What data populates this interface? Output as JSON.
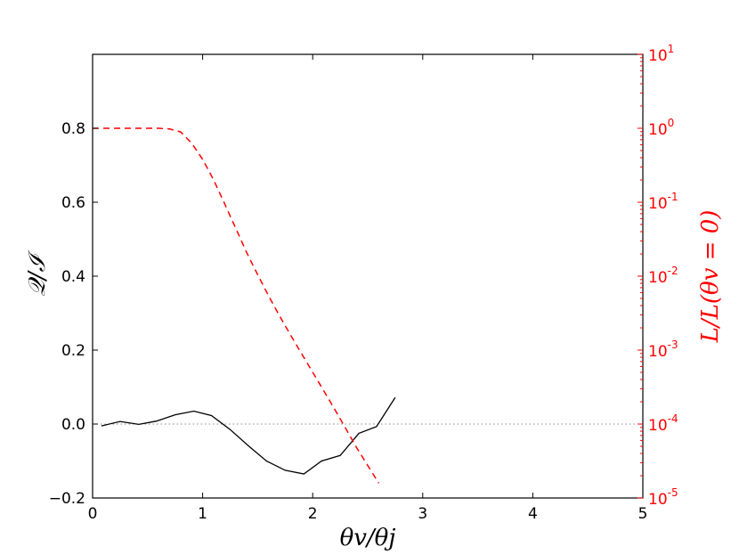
{
  "chart_data": {
    "type": "line",
    "title": "",
    "xlabel": "θv/θj",
    "ylabel_left": "𝒬/ℐ",
    "ylabel_right": "L/L(θv = 0)",
    "xlim": [
      0,
      5
    ],
    "ylim_left": [
      -0.2,
      1.0
    ],
    "right_axis_scale": "log",
    "ylim_right_exp": [
      -5,
      1
    ],
    "x_ticks": [
      "0",
      "1",
      "2",
      "3",
      "4",
      "5"
    ],
    "y_left_ticks": [
      "−0.2",
      "0.0",
      "0.2",
      "0.4",
      "0.6",
      "0.8"
    ],
    "y_left_tick_values": [
      -0.2,
      0.0,
      0.2,
      0.4,
      0.6,
      0.8
    ],
    "y_right_ticks": [
      {
        "exp": -5,
        "base": "10",
        "sup": "-5"
      },
      {
        "exp": -4,
        "base": "10",
        "sup": "-4"
      },
      {
        "exp": -3,
        "base": "10",
        "sup": "-3"
      },
      {
        "exp": -2,
        "base": "10",
        "sup": "-2"
      },
      {
        "exp": -1,
        "base": "10",
        "sup": "-1"
      },
      {
        "exp": 0,
        "base": "10",
        "sup": "0"
      },
      {
        "exp": 1,
        "base": "10",
        "sup": "1"
      }
    ],
    "series": [
      {
        "axis": "left",
        "style": "solid",
        "color": "#000000",
        "x": [
          0.08,
          0.25,
          0.42,
          0.58,
          0.75,
          0.92,
          1.08,
          1.25,
          1.42,
          1.58,
          1.75,
          1.92,
          2.08,
          2.25,
          2.42,
          2.58,
          2.75
        ],
        "y": [
          -0.005,
          0.007,
          -0.001,
          0.008,
          0.025,
          0.035,
          0.023,
          -0.015,
          -0.06,
          -0.1,
          -0.125,
          -0.135,
          -0.1,
          -0.085,
          -0.025,
          -0.007,
          0.072
        ]
      },
      {
        "axis": "right",
        "style": "dashed",
        "color": "#ff0000",
        "x": [
          0.0,
          0.2,
          0.4,
          0.6,
          0.7,
          0.8,
          0.9,
          1.0,
          1.1,
          1.2,
          1.3,
          1.4,
          1.5,
          1.6,
          1.7,
          1.8,
          1.9,
          2.0,
          2.1,
          2.2,
          2.3,
          2.4,
          2.5,
          2.6,
          2.7
        ],
        "log10_y": [
          0.0,
          0.0,
          0.0,
          0.0,
          -0.01,
          -0.05,
          -0.2,
          -0.42,
          -0.7,
          -1.02,
          -1.35,
          -1.68,
          -1.98,
          -2.27,
          -2.54,
          -2.8,
          -3.05,
          -3.3,
          -3.55,
          -3.8,
          -4.06,
          -4.32,
          -4.56,
          -4.8,
          -5.05
        ]
      }
    ],
    "reference_line": {
      "y": 0.0,
      "style": "dotted",
      "color": "#888888"
    },
    "grid": false,
    "colors": {
      "left_axis": "#000000",
      "right_axis": "#ff0000"
    }
  }
}
